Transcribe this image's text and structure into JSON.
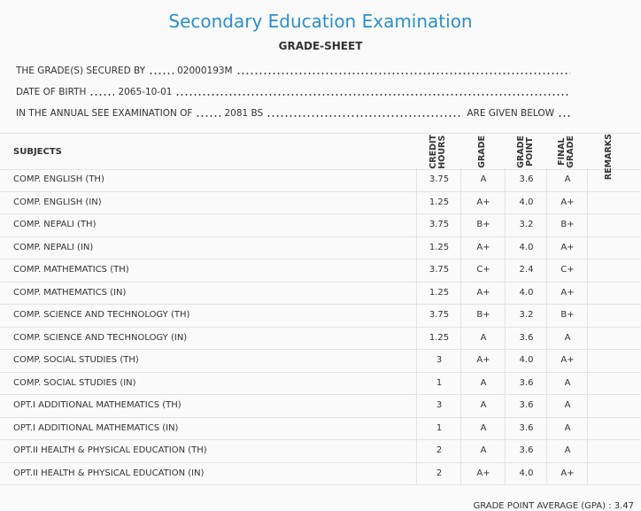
{
  "header": {
    "title": "Secondary Education Examination",
    "subtitle": "GRADE-SHEET"
  },
  "info": [
    {
      "label": "THE GRADE(S) SECURED BY",
      "value": "02000193M"
    },
    {
      "label": "DATE OF BIRTH",
      "value": "2065-10-01"
    },
    {
      "label": "IN THE ANNUAL SEE EXAMINATION OF",
      "value": "2081 BS",
      "suffix": "ARE GIVEN BELOW"
    }
  ],
  "table": {
    "subject_header": "SUBJECTS",
    "columns": [
      [
        "CREDIT",
        "HOURS"
      ],
      [
        "GRADE"
      ],
      [
        "GRADE",
        "POINT"
      ],
      [
        "FINAL",
        "GRADE"
      ],
      [
        "REMARKS"
      ]
    ],
    "rows": [
      [
        "COMP. ENGLISH (TH)",
        "3.75",
        "A",
        "3.6",
        "A"
      ],
      [
        "COMP. ENGLISH (IN)",
        "1.25",
        "A+",
        "4.0",
        "A+"
      ],
      [
        "COMP. NEPALI (TH)",
        "3.75",
        "B+",
        "3.2",
        "B+"
      ],
      [
        "COMP. NEPALI (IN)",
        "1.25",
        "A+",
        "4.0",
        "A+"
      ],
      [
        "COMP. MATHEMATICS (TH)",
        "3.75",
        "C+",
        "2.4",
        "C+"
      ],
      [
        "COMP. MATHEMATICS (IN)",
        "1.25",
        "A+",
        "4.0",
        "A+"
      ],
      [
        "COMP. SCIENCE AND TECHNOLOGY (TH)",
        "3.75",
        "B+",
        "3.2",
        "B+"
      ],
      [
        "COMP. SCIENCE AND TECHNOLOGY (IN)",
        "1.25",
        "A",
        "3.6",
        "A"
      ],
      [
        "COMP. SOCIAL STUDIES (TH)",
        "3",
        "A+",
        "4.0",
        "A+"
      ],
      [
        "COMP. SOCIAL STUDIES (IN)",
        "1",
        "A",
        "3.6",
        "A"
      ],
      [
        "OPT.I ADDITIONAL MATHEMATICS (TH)",
        "3",
        "A",
        "3.6",
        "A"
      ],
      [
        "OPT.I ADDITIONAL MATHEMATICS (IN)",
        "1",
        "A",
        "3.6",
        "A"
      ],
      [
        "OPT.II HEALTH & PHYSICAL EDUCATION (TH)",
        "2",
        "A",
        "3.6",
        "A"
      ],
      [
        "OPT.II HEALTH & PHYSICAL EDUCATION (IN)",
        "2",
        "A+",
        "4.0",
        "A+"
      ]
    ]
  },
  "footer": {
    "label": "GRADE POINT AVERAGE (GPA) :",
    "value": "3.47"
  }
}
